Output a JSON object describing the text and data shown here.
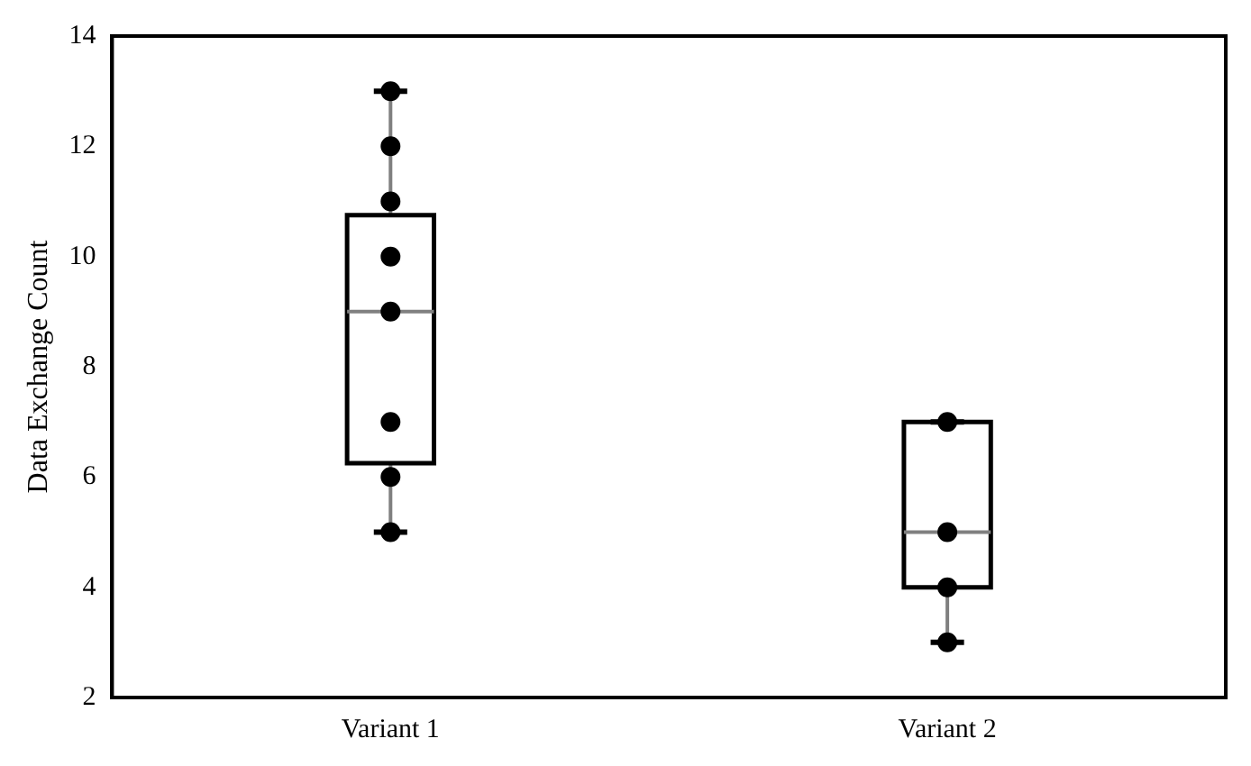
{
  "chart_data": {
    "type": "box",
    "ylabel": "Data Exchange Count",
    "categories": [
      "Variant 1",
      "Variant 2"
    ],
    "ylim": [
      2,
      14
    ],
    "yticks": [
      2,
      4,
      6,
      8,
      10,
      12,
      14
    ],
    "grid": false,
    "legend": false,
    "series": [
      {
        "color": "#000000",
        "boxes": [
          {
            "low": 5,
            "q1": 6.25,
            "median": 9,
            "q3": 10.75,
            "high": 13
          },
          {
            "low": 3,
            "q1": 4,
            "median": 5,
            "q3": 7,
            "high": 7
          }
        ]
      },
      {
        "type": "scatter",
        "color": "#000000",
        "marker": "circle",
        "x": [
          "Variant 1",
          "Variant 1",
          "Variant 1",
          "Variant 1",
          "Variant 1",
          "Variant 1",
          "Variant 1",
          "Variant 1",
          "Variant 2",
          "Variant 2",
          "Variant 2",
          "Variant 2"
        ],
        "values": [
          5,
          6,
          7,
          9,
          10,
          11,
          12,
          13,
          3,
          4,
          5,
          7
        ]
      }
    ]
  }
}
